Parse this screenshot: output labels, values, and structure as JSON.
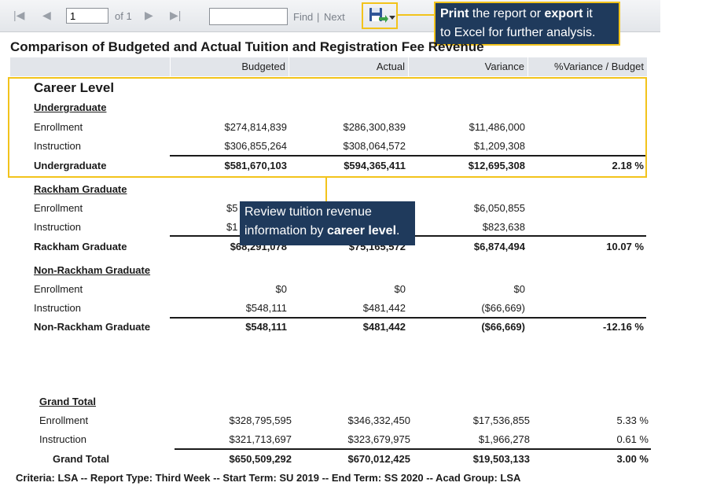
{
  "toolbar": {
    "first_icon": "first-page-icon",
    "prev_icon": "previous-page-icon",
    "page_value": "1",
    "of_label": "of 1",
    "next_icon": "next-page-icon",
    "last_icon": "last-page-icon",
    "find_value": "",
    "find_label": "Find",
    "separator": "|",
    "next_label": "Next",
    "export_icon": "save-export-icon",
    "dropdown_icon": "dropdown-arrow-icon"
  },
  "callouts": {
    "export": {
      "bold1": "Print",
      "text1": " the report or ",
      "bold2": "export",
      "text2": " it",
      "line2": "to Excel for further analysis."
    },
    "career": {
      "line1": "Review tuition revenue",
      "text2": "information by ",
      "bold2": "career level",
      "end2": "."
    }
  },
  "report": {
    "title": "Comparison of Budgeted and Actual Tuition and Registration Fee Revenue",
    "columns": [
      "Budgeted",
      "Actual",
      "Variance",
      "%Variance / Budget"
    ],
    "career_level_label": "Career Level",
    "groups": [
      {
        "name": "Undergraduate",
        "rows": [
          {
            "label": "Enrollment",
            "budgeted": "$274,814,839",
            "actual": "$286,300,839",
            "variance": "$11,486,000",
            "pct": ""
          },
          {
            "label": "Instruction",
            "budgeted": "$306,855,264",
            "actual": "$308,064,572",
            "variance": "$1,209,308",
            "pct": ""
          }
        ],
        "total": {
          "label": "Undergraduate",
          "budgeted": "$581,670,103",
          "actual": "$594,365,411",
          "variance": "$12,695,308",
          "pct": "2.18 %"
        }
      },
      {
        "name": "Rackham Graduate",
        "rows": [
          {
            "label": "Enrollment",
            "budgeted": "$5",
            "actual": "",
            "variance": "$6,050,855",
            "pct": ""
          },
          {
            "label": "Instruction",
            "budgeted": "$1",
            "actual": "",
            "variance": "$823,638",
            "pct": ""
          }
        ],
        "total": {
          "label": "Rackham Graduate",
          "budgeted": "$68,291,078",
          "actual": "$75,165,572",
          "variance": "$6,874,494",
          "pct": "10.07 %"
        }
      },
      {
        "name": "Non-Rackham Graduate",
        "rows": [
          {
            "label": "Enrollment",
            "budgeted": "$0",
            "actual": "$0",
            "variance": "$0",
            "pct": ""
          },
          {
            "label": "Instruction",
            "budgeted": "$548,111",
            "actual": "$481,442",
            "variance": "($66,669)",
            "pct": ""
          }
        ],
        "total": {
          "label": "Non-Rackham Graduate",
          "budgeted": "$548,111",
          "actual": "$481,442",
          "variance": "($66,669)",
          "pct": "-12.16 %"
        }
      }
    ],
    "grand_total": {
      "heading": "Grand Total",
      "rows": [
        {
          "label": "Enrollment",
          "budgeted": "$328,795,595",
          "actual": "$346,332,450",
          "variance": "$17,536,855",
          "pct": "5.33 %"
        },
        {
          "label": "Instruction",
          "budgeted": "$321,713,697",
          "actual": "$323,679,975",
          "variance": "$1,966,278",
          "pct": "0.61 %"
        }
      ],
      "total": {
        "label": "Grand Total",
        "budgeted": "$650,509,292",
        "actual": "$670,012,425",
        "variance": "$19,503,133",
        "pct": "3.00 %"
      }
    },
    "criteria": "Criteria: LSA -- Report Type: Third Week -- Start Term: SU 2019 -- End Term: SS 2020 -- Acad Group: LSA"
  },
  "colors": {
    "highlight": "#f2c31b",
    "callout_bg": "#1f3a5c",
    "header_bg": "#e2e5ea"
  }
}
